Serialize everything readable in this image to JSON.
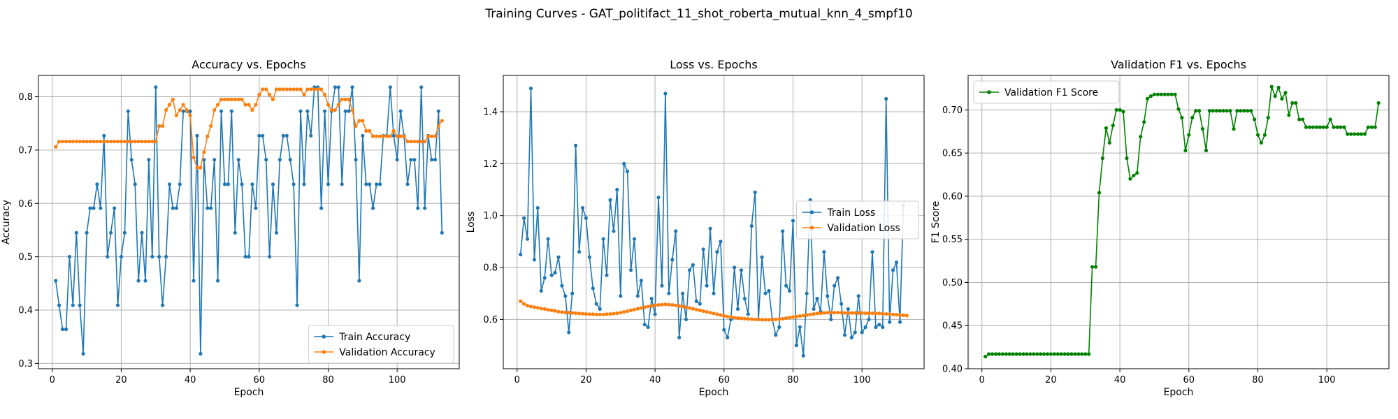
{
  "figure": {
    "suptitle": "Training Curves - GAT_politifact_11_shot_roberta_mutual_knn_4_smpf10"
  },
  "colors": {
    "train": "#1f77b4",
    "val": "#ff7f0e",
    "f1": "#008000"
  },
  "chart_data": [
    {
      "id": "accuracy",
      "type": "line",
      "title": "Accuracy vs. Epochs",
      "xlabel": "Epoch",
      "ylabel": "Accuracy",
      "xlim": [
        -4,
        118
      ],
      "ylim": [
        0.29,
        0.84
      ],
      "xticks": [
        0,
        20,
        40,
        60,
        80,
        100
      ],
      "yticks": [
        0.3,
        0.4,
        0.5,
        0.6,
        0.7,
        0.8
      ],
      "yticklabels": [
        "0.3",
        "0.4",
        "0.5",
        "0.6",
        "0.7",
        "0.8"
      ],
      "grid": true,
      "legend_loc": "lower-right",
      "series": [
        {
          "name": "Train Accuracy",
          "color": "#1f77b4",
          "values": [
            0.455,
            0.409,
            0.364,
            0.364,
            0.5,
            0.409,
            0.545,
            0.409,
            0.318,
            0.545,
            0.591,
            0.591,
            0.636,
            0.591,
            0.727,
            0.5,
            0.545,
            0.591,
            0.409,
            0.5,
            0.545,
            0.773,
            0.682,
            0.636,
            0.455,
            0.545,
            0.455,
            0.682,
            0.5,
            0.818,
            0.5,
            0.409,
            0.5,
            0.636,
            0.591,
            0.591,
            0.636,
            0.773,
            0.773,
            0.773,
            0.455,
            0.727,
            0.318,
            0.682,
            0.591,
            0.591,
            0.682,
            0.455,
            0.773,
            0.636,
            0.636,
            0.773,
            0.545,
            0.682,
            0.636,
            0.5,
            0.5,
            0.636,
            0.591,
            0.727,
            0.727,
            0.682,
            0.5,
            0.636,
            0.545,
            0.682,
            0.727,
            0.727,
            0.682,
            0.636,
            0.409,
            0.773,
            0.636,
            0.773,
            0.727,
            0.818,
            0.818,
            0.591,
            0.773,
            0.636,
            0.773,
            0.818,
            0.818,
            0.636,
            0.773,
            0.773,
            0.818,
            0.682,
            0.455,
            0.727,
            0.636,
            0.636,
            0.591,
            0.636,
            0.636,
            0.727,
            0.727,
            0.818,
            0.727,
            0.682,
            0.773,
            0.727,
            0.636,
            0.682,
            0.682,
            0.591,
            0.818,
            0.591,
            0.727,
            0.682,
            0.682,
            0.773,
            0.545
          ]
        },
        {
          "name": "Validation Accuracy",
          "color": "#ff7f0e",
          "values": [
            0.706,
            0.716,
            0.716,
            0.716,
            0.716,
            0.716,
            0.716,
            0.716,
            0.716,
            0.716,
            0.716,
            0.716,
            0.716,
            0.716,
            0.716,
            0.716,
            0.716,
            0.716,
            0.716,
            0.716,
            0.716,
            0.716,
            0.716,
            0.716,
            0.716,
            0.716,
            0.716,
            0.716,
            0.716,
            0.716,
            0.745,
            0.745,
            0.775,
            0.785,
            0.795,
            0.765,
            0.775,
            0.785,
            0.775,
            0.765,
            0.686,
            0.667,
            0.667,
            0.696,
            0.726,
            0.745,
            0.775,
            0.785,
            0.795,
            0.795,
            0.795,
            0.795,
            0.795,
            0.795,
            0.795,
            0.785,
            0.785,
            0.775,
            0.785,
            0.804,
            0.814,
            0.814,
            0.804,
            0.795,
            0.814,
            0.814,
            0.814,
            0.814,
            0.814,
            0.814,
            0.814,
            0.814,
            0.804,
            0.814,
            0.814,
            0.814,
            0.814,
            0.814,
            0.804,
            0.785,
            0.775,
            0.775,
            0.785,
            0.795,
            0.795,
            0.795,
            0.775,
            0.745,
            0.755,
            0.755,
            0.736,
            0.736,
            0.726,
            0.726,
            0.726,
            0.726,
            0.726,
            0.726,
            0.736,
            0.726,
            0.726,
            0.726,
            0.716,
            0.716,
            0.716,
            0.716,
            0.716,
            0.716,
            0.726,
            0.726,
            0.726,
            0.745,
            0.755
          ]
        }
      ]
    },
    {
      "id": "loss",
      "type": "line",
      "title": "Loss vs. Epochs",
      "xlabel": "Epoch",
      "ylabel": "Loss",
      "xlim": [
        -4,
        118
      ],
      "ylim": [
        0.41,
        1.54
      ],
      "xticks": [
        0,
        20,
        40,
        60,
        80,
        100
      ],
      "yticks": [
        0.6,
        0.8,
        1.0,
        1.2,
        1.4
      ],
      "yticklabels": [
        "0.6",
        "0.8",
        "1.0",
        "1.2",
        "1.4"
      ],
      "grid": true,
      "legend_loc": "center-right",
      "series": [
        {
          "name": "Train Loss",
          "color": "#1f77b4",
          "values": [
            0.85,
            0.99,
            0.91,
            1.49,
            0.83,
            1.03,
            0.71,
            0.76,
            0.91,
            0.77,
            0.78,
            0.84,
            0.73,
            0.69,
            0.55,
            0.7,
            1.27,
            0.86,
            1.03,
            0.99,
            0.84,
            0.72,
            0.66,
            0.64,
            0.91,
            0.77,
            1.06,
            0.94,
            1.1,
            0.69,
            1.2,
            1.17,
            0.79,
            0.91,
            0.69,
            0.75,
            0.58,
            0.57,
            0.68,
            0.62,
            1.07,
            0.73,
            1.47,
            0.7,
            0.83,
            0.94,
            0.53,
            0.7,
            0.6,
            0.79,
            0.81,
            0.67,
            0.66,
            0.87,
            0.73,
            0.95,
            0.7,
            0.86,
            0.9,
            0.56,
            0.53,
            0.6,
            0.8,
            0.64,
            0.79,
            0.68,
            0.62,
            0.96,
            1.09,
            0.6,
            0.84,
            0.7,
            0.71,
            0.6,
            0.54,
            0.57,
            0.94,
            0.73,
            0.71,
            0.98,
            0.5,
            0.57,
            0.46,
            0.7,
            1.06,
            0.64,
            0.68,
            0.63,
            0.86,
            0.69,
            0.6,
            0.73,
            0.76,
            0.66,
            0.54,
            0.64,
            0.53,
            0.55,
            0.69,
            0.55,
            0.57,
            0.6,
            0.86,
            0.57,
            0.58,
            0.57,
            1.45,
            0.59,
            0.79,
            0.82,
            0.59,
            1.04
          ]
        },
        {
          "name": "Validation Loss",
          "color": "#ff7f0e",
          "values": [
            0.67,
            0.66,
            0.653,
            0.65,
            0.647,
            0.645,
            0.642,
            0.64,
            0.637,
            0.635,
            0.633,
            0.63,
            0.628,
            0.627,
            0.626,
            0.625,
            0.624,
            0.623,
            0.622,
            0.621,
            0.62,
            0.62,
            0.619,
            0.619,
            0.619,
            0.62,
            0.621,
            0.622,
            0.624,
            0.626,
            0.629,
            0.632,
            0.635,
            0.638,
            0.641,
            0.644,
            0.647,
            0.65,
            0.652,
            0.654,
            0.656,
            0.657,
            0.658,
            0.657,
            0.656,
            0.654,
            0.652,
            0.65,
            0.647,
            0.644,
            0.641,
            0.638,
            0.635,
            0.632,
            0.629,
            0.626,
            0.623,
            0.62,
            0.617,
            0.614,
            0.611,
            0.609,
            0.607,
            0.605,
            0.604,
            0.603,
            0.602,
            0.601,
            0.6,
            0.6,
            0.599,
            0.599,
            0.599,
            0.599,
            0.6,
            0.601,
            0.603,
            0.605,
            0.607,
            0.609,
            0.611,
            0.613,
            0.615,
            0.617,
            0.619,
            0.621,
            0.623,
            0.624,
            0.625,
            0.626,
            0.626,
            0.626,
            0.626,
            0.626,
            0.625,
            0.625,
            0.625,
            0.625,
            0.625,
            0.625,
            0.624,
            0.624,
            0.624,
            0.623,
            0.623,
            0.622,
            0.621,
            0.62,
            0.619,
            0.618,
            0.617,
            0.616,
            0.615
          ]
        }
      ]
    },
    {
      "id": "f1",
      "type": "line",
      "title": "Validation F1 vs. Epochs",
      "xlabel": "Epoch",
      "ylabel": "F1 Score",
      "xlim": [
        -4,
        118
      ],
      "ylim": [
        0.4,
        0.74
      ],
      "xticks": [
        0,
        20,
        40,
        60,
        80,
        100
      ],
      "yticks": [
        0.4,
        0.45,
        0.5,
        0.55,
        0.6,
        0.65,
        0.7
      ],
      "yticklabels": [
        "0.40",
        "0.45",
        "0.50",
        "0.55",
        "0.60",
        "0.65",
        "0.70"
      ],
      "grid": true,
      "legend_loc": "upper-left",
      "series": [
        {
          "name": "Validation F1 Score",
          "color": "#008000",
          "values": [
            0.414,
            0.417,
            0.417,
            0.417,
            0.417,
            0.417,
            0.417,
            0.417,
            0.417,
            0.417,
            0.417,
            0.417,
            0.417,
            0.417,
            0.417,
            0.417,
            0.417,
            0.417,
            0.417,
            0.417,
            0.417,
            0.417,
            0.417,
            0.417,
            0.417,
            0.417,
            0.417,
            0.417,
            0.417,
            0.417,
            0.417,
            0.518,
            0.518,
            0.604,
            0.644,
            0.679,
            0.662,
            0.682,
            0.7,
            0.7,
            0.698,
            0.644,
            0.62,
            0.624,
            0.627,
            0.669,
            0.686,
            0.713,
            0.716,
            0.718,
            0.718,
            0.718,
            0.718,
            0.718,
            0.718,
            0.718,
            0.701,
            0.691,
            0.653,
            0.671,
            0.691,
            0.699,
            0.699,
            0.678,
            0.653,
            0.699,
            0.699,
            0.699,
            0.699,
            0.699,
            0.699,
            0.699,
            0.678,
            0.699,
            0.699,
            0.699,
            0.699,
            0.699,
            0.689,
            0.671,
            0.662,
            0.671,
            0.691,
            0.727,
            0.716,
            0.726,
            0.713,
            0.72,
            0.694,
            0.708,
            0.708,
            0.689,
            0.689,
            0.68,
            0.68,
            0.68,
            0.68,
            0.68,
            0.68,
            0.68,
            0.689,
            0.68,
            0.68,
            0.68,
            0.68,
            0.672,
            0.672,
            0.672,
            0.672,
            0.672,
            0.672,
            0.68,
            0.68,
            0.68,
            0.708
          ]
        }
      ]
    }
  ]
}
